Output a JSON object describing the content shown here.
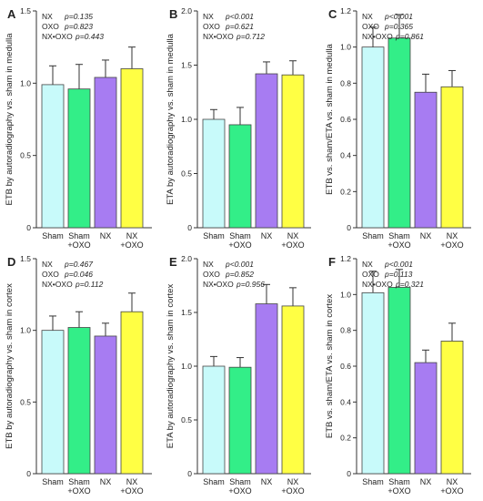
{
  "chart_data": [
    {
      "type": "bar",
      "panel": "A",
      "categories": [
        [
          "Sham"
        ],
        [
          "Sham",
          "+OXO"
        ],
        [
          "NX"
        ],
        [
          "NX",
          "+OXO"
        ]
      ],
      "values": [
        0.99,
        0.96,
        1.04,
        1.1
      ],
      "errors": [
        0.13,
        0.17,
        0.12,
        0.15
      ],
      "colors": [
        "#c8fafa",
        "#33ee88",
        "#a77cf2",
        "#ffff44"
      ],
      "ylabel": "ETB by autoradiography vs. sham in medulla",
      "ylim": [
        0,
        1.5
      ],
      "yticks": [
        0,
        0.5,
        1.0,
        1.5
      ],
      "yticklabels": [
        "0",
        "0.5",
        "1.0",
        "1.5"
      ],
      "stats": [
        [
          "NX",
          "p=0.135"
        ],
        [
          "OXO",
          "p=0.823"
        ],
        [
          "NX•OXO",
          "p=0.443"
        ]
      ]
    },
    {
      "type": "bar",
      "panel": "B",
      "categories": [
        [
          "Sham"
        ],
        [
          "Sham",
          "+OXO"
        ],
        [
          "NX"
        ],
        [
          "NX",
          "+OXO"
        ]
      ],
      "values": [
        1.0,
        0.95,
        1.42,
        1.41
      ],
      "errors": [
        0.09,
        0.16,
        0.11,
        0.13
      ],
      "colors": [
        "#c8fafa",
        "#33ee88",
        "#a77cf2",
        "#ffff44"
      ],
      "ylabel": "ETA by autoradiography vs. sham in medulla",
      "ylim": [
        0,
        2.0
      ],
      "yticks": [
        0,
        0.5,
        1.0,
        1.5,
        2.0
      ],
      "yticklabels": [
        "0",
        "0.5",
        "1.0",
        "1.5",
        "2.0"
      ],
      "stats": [
        [
          "NX",
          "p<0.001"
        ],
        [
          "OXO",
          "p=0.621"
        ],
        [
          "NX•OXO",
          "p=0.712"
        ]
      ]
    },
    {
      "type": "bar",
      "panel": "C",
      "categories": [
        [
          "Sham"
        ],
        [
          "Sham",
          "+OXO"
        ],
        [
          "NX"
        ],
        [
          "NX",
          "+OXO"
        ]
      ],
      "values": [
        1.0,
        1.05,
        0.75,
        0.78
      ],
      "errors": [
        0.11,
        0.13,
        0.1,
        0.09
      ],
      "colors": [
        "#c8fafa",
        "#33ee88",
        "#a77cf2",
        "#ffff44"
      ],
      "ylabel": "ETB vs. sham/ETA vs. sham in medulla",
      "ylim": [
        0,
        1.2
      ],
      "yticks": [
        0,
        0.2,
        0.4,
        0.6,
        0.8,
        1.0,
        1.2
      ],
      "yticklabels": [
        "0",
        "0.2",
        "0.4",
        "0.6",
        "0.8",
        "1.0",
        "1.2"
      ],
      "stats": [
        [
          "NX",
          "p<0.001"
        ],
        [
          "OXO",
          "p=0.365"
        ],
        [
          "NX•OXO",
          "p=0.861"
        ]
      ]
    },
    {
      "type": "bar",
      "panel": "D",
      "categories": [
        [
          "Sham"
        ],
        [
          "Sham",
          "+OXO"
        ],
        [
          "NX"
        ],
        [
          "NX",
          "+OXO"
        ]
      ],
      "values": [
        1.0,
        1.02,
        0.96,
        1.13
      ],
      "errors": [
        0.1,
        0.11,
        0.09,
        0.13
      ],
      "colors": [
        "#c8fafa",
        "#33ee88",
        "#a77cf2",
        "#ffff44"
      ],
      "ylabel": "ETB by autoradiography vs. sham in cortex",
      "ylim": [
        0,
        1.5
      ],
      "yticks": [
        0,
        0.5,
        1.0,
        1.5
      ],
      "yticklabels": [
        "0",
        "0.5",
        "1.0",
        "1.5"
      ],
      "stats": [
        [
          "NX",
          "p=0.467"
        ],
        [
          "OXO",
          "p=0.046"
        ],
        [
          "NX•OXO",
          "p=0.112"
        ]
      ]
    },
    {
      "type": "bar",
      "panel": "E",
      "categories": [
        [
          "Sham"
        ],
        [
          "Sham",
          "+OXO"
        ],
        [
          "NX"
        ],
        [
          "NX",
          "+OXO"
        ]
      ],
      "values": [
        1.0,
        0.99,
        1.58,
        1.56
      ],
      "errors": [
        0.09,
        0.09,
        0.18,
        0.17
      ],
      "colors": [
        "#c8fafa",
        "#33ee88",
        "#a77cf2",
        "#ffff44"
      ],
      "ylabel": "ETA by autoradiography vs. sham in cortex",
      "ylim": [
        0,
        2.0
      ],
      "yticks": [
        0,
        0.5,
        1.0,
        1.5,
        2.0
      ],
      "yticklabels": [
        "0",
        "0.5",
        "1.0",
        "1.5",
        "2.0"
      ],
      "stats": [
        [
          "NX",
          "p<0.001"
        ],
        [
          "OXO",
          "p=0.852"
        ],
        [
          "NX•OXO",
          "p=0.956"
        ]
      ]
    },
    {
      "type": "bar",
      "panel": "F",
      "categories": [
        [
          "Sham"
        ],
        [
          "Sham",
          "+OXO"
        ],
        [
          "NX"
        ],
        [
          "NX",
          "+OXO"
        ]
      ],
      "values": [
        1.01,
        1.04,
        0.62,
        0.74
      ],
      "errors": [
        0.12,
        0.1,
        0.07,
        0.1
      ],
      "colors": [
        "#c8fafa",
        "#33ee88",
        "#a77cf2",
        "#ffff44"
      ],
      "ylabel": "ETB vs. sham/ETA vs. sham in cortex",
      "ylim": [
        0,
        1.2
      ],
      "yticks": [
        0,
        0.2,
        0.4,
        0.6,
        0.8,
        1.0,
        1.2
      ],
      "yticklabels": [
        "0",
        "0.2",
        "0.4",
        "0.6",
        "0.8",
        "1.0",
        "1.2"
      ],
      "stats": [
        [
          "NX",
          "p<0.001"
        ],
        [
          "OXO",
          "p=0.113"
        ],
        [
          "NX•OXO",
          "p=0.321"
        ]
      ]
    }
  ]
}
